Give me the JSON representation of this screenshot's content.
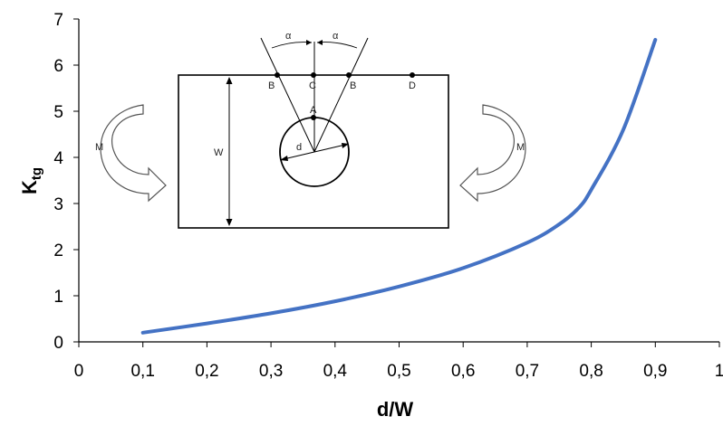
{
  "chart_data": {
    "type": "line",
    "xlabel": "d/W",
    "ylabel": {
      "main": "K",
      "sub": "tg"
    },
    "xlim": [
      0,
      1
    ],
    "ylim": [
      0,
      7
    ],
    "x_ticks": [
      "0",
      "0,1",
      "0,2",
      "0,3",
      "0,4",
      "0,5",
      "0,6",
      "0,7",
      "0,8",
      "0,9",
      "1"
    ],
    "y_ticks": [
      "0",
      "1",
      "2",
      "3",
      "4",
      "5",
      "6",
      "7"
    ],
    "grid": false,
    "legend": "none",
    "series": [
      {
        "color": "#4472C4",
        "x": [
          0.1,
          0.2,
          0.3,
          0.4,
          0.5,
          0.6,
          0.7,
          0.75,
          0.78,
          0.8,
          0.85,
          0.9
        ],
        "y": [
          0.2,
          0.4,
          0.62,
          0.88,
          1.2,
          1.6,
          2.15,
          2.55,
          2.9,
          3.3,
          4.6,
          6.55
        ]
      }
    ]
  },
  "inset": {
    "labels": {
      "point_b_left": "B",
      "point_c": "C",
      "point_b_right": "B",
      "point_d": "D",
      "point_a": "A",
      "alpha_left": "α",
      "alpha_right": "α",
      "width": "W",
      "diameter": "d",
      "moment_left": "M",
      "moment_right": "M"
    }
  }
}
